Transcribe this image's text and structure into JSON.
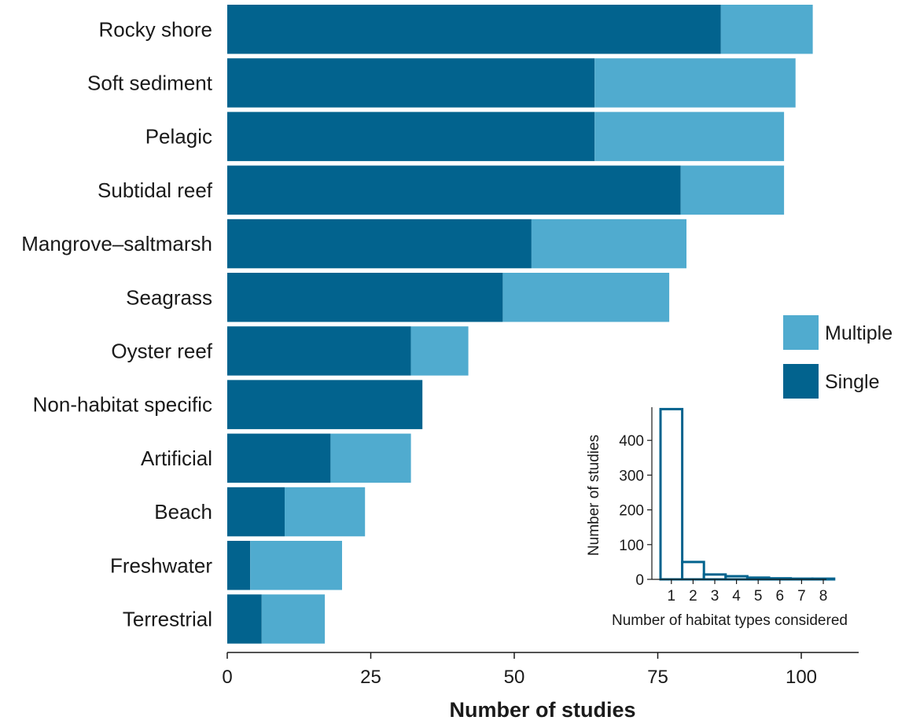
{
  "chart_data": [
    {
      "type": "bar",
      "orientation": "horizontal",
      "stacked": true,
      "categories": [
        "Rocky shore",
        "Soft sediment",
        "Pelagic",
        "Subtidal reef",
        "Mangrove–saltmarsh",
        "Seagrass",
        "Oyster reef",
        "Non-habitat specific",
        "Artificial",
        "Beach",
        "Freshwater",
        "Terrestrial"
      ],
      "series": [
        {
          "name": "Single",
          "color": "#02638e",
          "values": [
            86,
            64,
            64,
            79,
            53,
            48,
            32,
            34,
            18,
            10,
            4,
            6
          ]
        },
        {
          "name": "Multiple",
          "color": "#50abcf",
          "values": [
            16,
            35,
            33,
            18,
            27,
            29,
            10,
            0,
            14,
            14,
            16,
            11
          ]
        }
      ],
      "xlabel": "Number of studies",
      "ylabel": "",
      "xlim": [
        0,
        110
      ],
      "xticks": [
        0,
        25,
        50,
        75,
        100
      ],
      "legend": {
        "position": "right",
        "entries": [
          "Multiple",
          "Single"
        ]
      },
      "grid": false
    },
    {
      "type": "bar",
      "inset": true,
      "categories": [
        "1",
        "2",
        "3",
        "4",
        "5",
        "6",
        "7",
        "8"
      ],
      "values": [
        490,
        50,
        14,
        9,
        5,
        3,
        2,
        2
      ],
      "xlabel": "Number of habitat types considered",
      "ylabel": "Number of studies",
      "ylim": [
        0,
        490
      ],
      "yticks": [
        0,
        100,
        200,
        300,
        400
      ],
      "bar_fill": "#ffffff",
      "bar_stroke": "#02638e",
      "grid": false
    }
  ]
}
